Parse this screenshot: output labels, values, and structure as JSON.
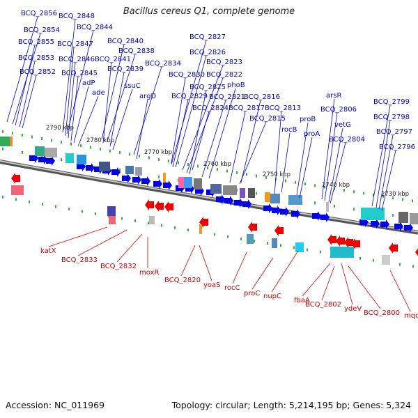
{
  "title": "Bacillus cereus Q1, complete genome",
  "footer": {
    "accession": "Accession: NC_011969",
    "summary": "Topology: circular; Length: 5,214,195 bp; Genes: 5,324"
  },
  "colors": {
    "forward_label": "#0000cc",
    "reverse_label": "#cc0000",
    "forward_arrow": "#0000ee",
    "reverse_arrow": "#ee0000",
    "tick": "#009900",
    "backbone": "#888888"
  },
  "scale_labels": [
    "2790 kbp",
    "2780 kbp",
    "2770 kbp",
    "2760 kbp",
    "2750 kbp",
    "2740 kbp",
    "2730 kbp"
  ],
  "forward_labels": [
    "BCQ_2856",
    "BCQ_2848",
    "BCQ_2854",
    "BCQ_2844",
    "BCQ_2855",
    "BCQ_2847",
    "BCQ_2840",
    "BCQ_2853",
    "BCQ_2838",
    "BCQ_2846",
    "BCQ_2841",
    "BCQ_2852",
    "BCQ_2839",
    "BCQ_2845",
    "adP",
    "ssuC",
    "ade",
    "BCQ_2834",
    "argD",
    "BCQ_2827",
    "BCQ_2826",
    "BCQ_2823",
    "BCQ_2822",
    "BCQ_2830",
    "BCQ_2825",
    "phoB",
    "BCQ_2829",
    "BCQ_2821",
    "BCQ_2816",
    "BCQ_2824",
    "BCQ_2817",
    "BCQ_2813",
    "BCQ_2815",
    "arsR",
    "BCQ_2806",
    "proB",
    "rocB",
    "BCQ_2799",
    "BCQ_2798",
    "vetG",
    "proA",
    "BCQ_2797",
    "BCQ_2804",
    "BCQ_2796"
  ],
  "reverse_labels": [
    "katX",
    "BCQ_2833",
    "BCQ_2832",
    "moxR",
    "BCQ_2820",
    "yoaS",
    "rocC",
    "proC",
    "nupC",
    "fbaA",
    "BCQ_2802",
    "ydeV",
    "BCQ_2800",
    "mqo"
  ]
}
